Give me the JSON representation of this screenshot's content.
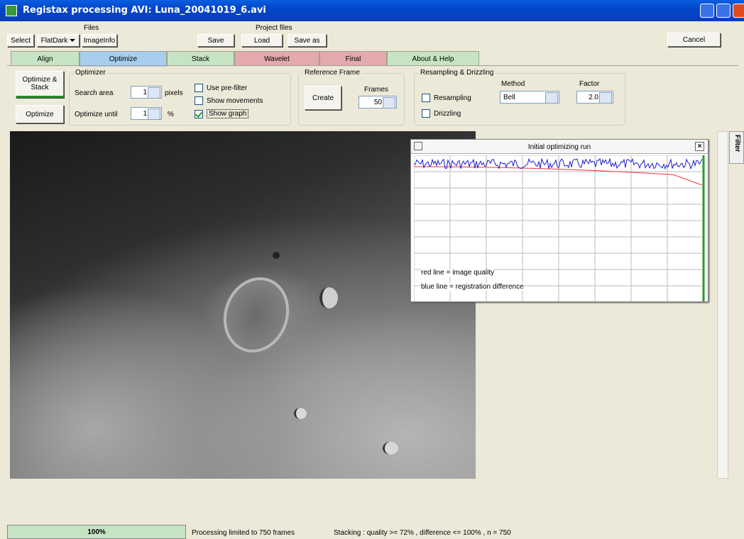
{
  "window": {
    "title": "Registax processing AVI: Luna_20041019_6.avi"
  },
  "toolbar": {
    "files_label": "Files",
    "select": "Select",
    "flatdark": "FlatDark",
    "imageinfo": "ImageInfo",
    "project_label": "Project files",
    "save": "Save",
    "load": "Load",
    "save_as": "Save as",
    "cancel": "Cancel"
  },
  "tabs": [
    {
      "label": "Align",
      "color": "#c6e4c3"
    },
    {
      "label": "Optimize",
      "color": "#a9cdee"
    },
    {
      "label": "Stack",
      "color": "#c6e4c3"
    },
    {
      "label": "Wavelet",
      "color": "#e3a9ad"
    },
    {
      "label": "Final",
      "color": "#e3a9ad"
    },
    {
      "label": "About & Help",
      "color": "#c6e4c3"
    }
  ],
  "active_tab": 1,
  "optimize_panel": {
    "optimize_stack": "Optimize & Stack",
    "optimize": "Optimize",
    "optimizer": {
      "title": "Optimizer",
      "search_area": "Search area",
      "search_value": "1",
      "pixels": "pixels",
      "until": "Optimize until",
      "until_value": "1",
      "percent": "%",
      "options": [
        {
          "label": "Use pre-filter",
          "checked": false
        },
        {
          "label": "Show movements",
          "checked": false
        },
        {
          "label": "Show graph",
          "checked": true
        }
      ]
    },
    "reference": {
      "title": "Reference Frame",
      "create": "Create",
      "frames_label": "Frames",
      "frames_value": "50"
    },
    "resampling": {
      "title": "Resampling & Drizzling",
      "options": [
        {
          "label": "Resampling",
          "checked": false
        },
        {
          "label": "Drizzling",
          "checked": false
        }
      ],
      "method_label": "Method",
      "method_value": "Bell",
      "factor_label": "Factor",
      "factor_value": "2.0"
    }
  },
  "graph": {
    "title": "Initial optimizing run",
    "legend": [
      "red line = image quality",
      "blue line = registration difference"
    ]
  },
  "side_tab": "Filter",
  "status": {
    "progress": "100%",
    "processing": "Processing limited to 750 frames",
    "stacking": "Stacking : quality >= 72% , difference <= 100% , n = 750"
  }
}
